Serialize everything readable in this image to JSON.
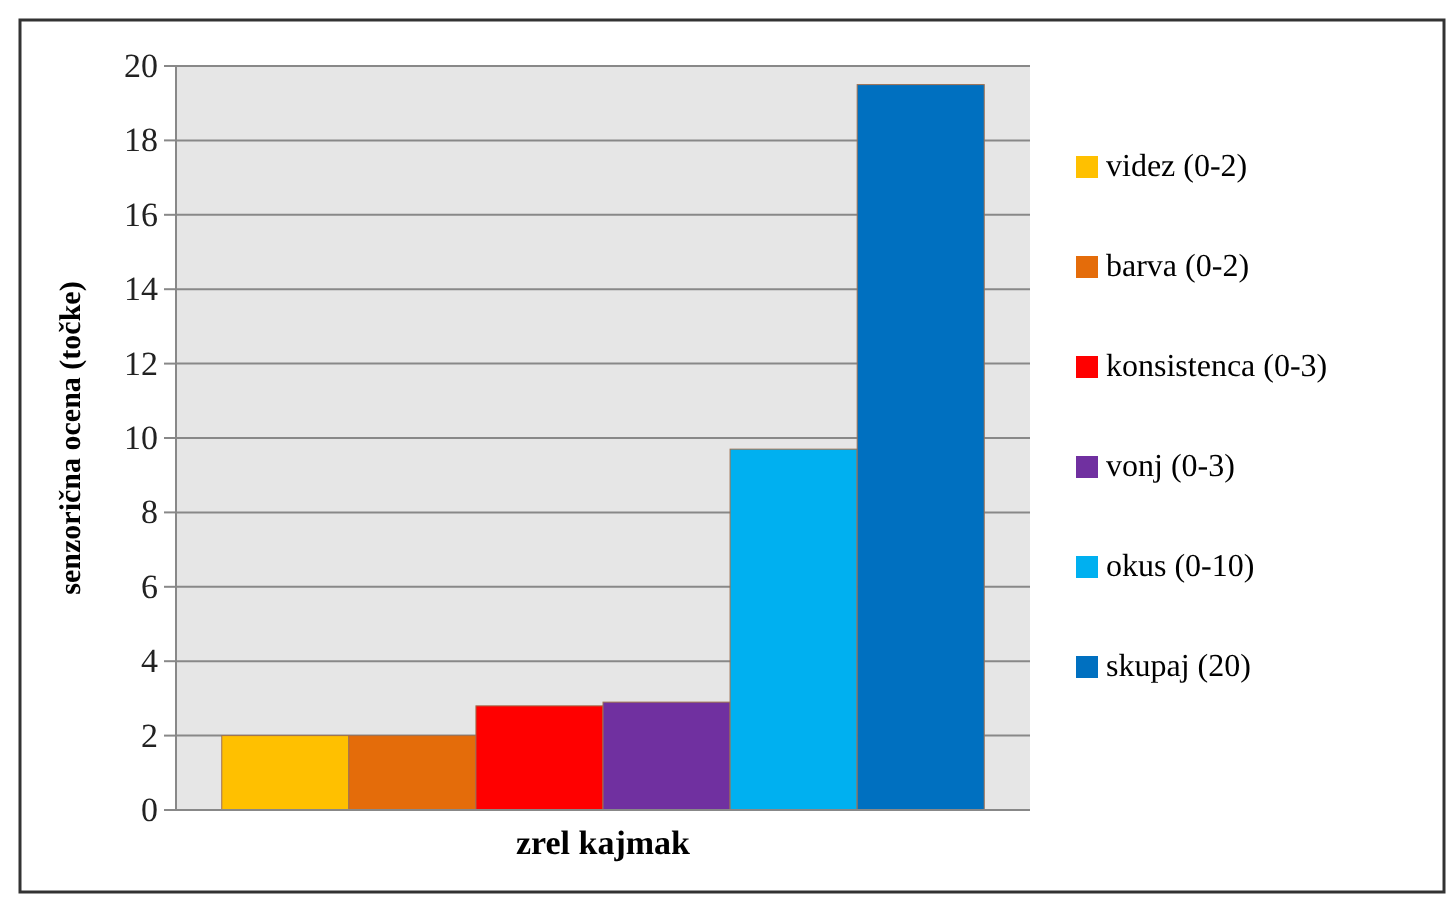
{
  "chart_data": {
    "type": "bar",
    "categories": [
      "zrel kajmak"
    ],
    "ylabel": "senzorična ocena (točke)",
    "ylim": [
      0,
      20
    ],
    "yticks": [
      0,
      2,
      4,
      6,
      8,
      10,
      12,
      14,
      16,
      18,
      20
    ],
    "grid": "y",
    "legend": "right",
    "series": [
      {
        "name": "videz (0-2)",
        "color": "#ffc000",
        "values": [
          2.0
        ]
      },
      {
        "name": "barva (0-2)",
        "color": "#e46c0a",
        "values": [
          2.0
        ]
      },
      {
        "name": "konsistenca (0-3)",
        "color": "#ff0000",
        "values": [
          2.8
        ]
      },
      {
        "name": "vonj (0-3)",
        "color": "#7030a0",
        "values": [
          2.9
        ]
      },
      {
        "name": "okus (0-10)",
        "color": "#00b0f0",
        "values": [
          9.7
        ]
      },
      {
        "name": "skupaj (20)",
        "color": "#0070c0",
        "values": [
          19.5
        ]
      }
    ]
  }
}
